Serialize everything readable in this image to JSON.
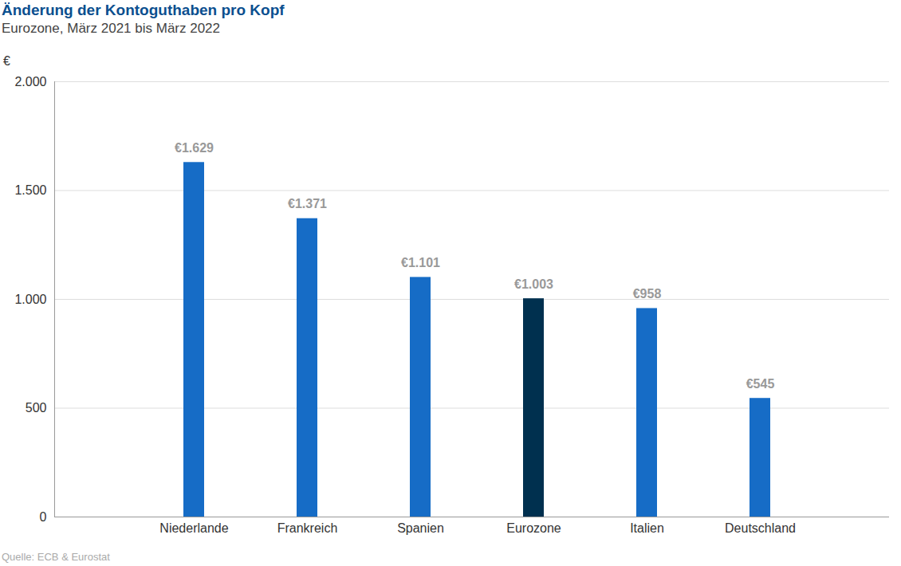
{
  "chart_data": {
    "type": "bar",
    "title": "Änderung der Kontoguthaben pro Kopf",
    "subtitle": "Eurozone, März 2021 bis März 2022",
    "y_label": "€",
    "source": "Quelle: ECB & Eurostat",
    "categories": [
      "Niederlande",
      "Frankreich",
      "Spanien",
      "Eurozone",
      "Italien",
      "Deutschland"
    ],
    "values": [
      1629,
      1371,
      1101,
      1003,
      958,
      545
    ],
    "value_labels": [
      "€1.629",
      "€1.371",
      "€1.101",
      "€1.003",
      "€958",
      "€545"
    ],
    "colors": [
      "#166cc6",
      "#166cc6",
      "#166cc6",
      "#00304f",
      "#166cc6",
      "#166cc6"
    ],
    "ylim": [
      0,
      2000
    ],
    "yticks": [
      0,
      500,
      {
        "value": 1000,
        "label": "1.000"
      },
      {
        "value": 1500,
        "label": "1.500"
      },
      {
        "value": 2000,
        "label": "2.000"
      }
    ],
    "grid": true,
    "data_labels": true
  }
}
